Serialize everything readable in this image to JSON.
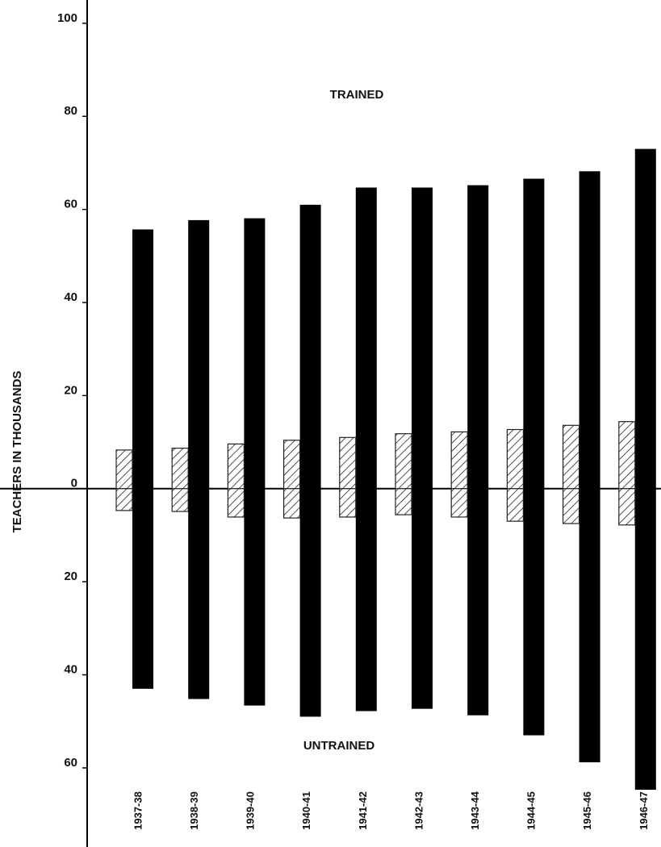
{
  "chart_data": {
    "type": "diverging-bar",
    "y_label": "TEACHERS IN THOUSANDS",
    "annotations": [
      "TRAINED",
      "UNTRAINED"
    ],
    "categories": [
      "1937-38",
      "1938-39",
      "1939-40",
      "1940-41",
      "1941-42",
      "1942-43",
      "1943-44",
      "1944-45",
      "1945-46",
      "1946-47"
    ],
    "series": [
      {
        "color": "#000000",
        "hatch": false,
        "values": [
          55.7,
          57.7,
          58.1,
          61,
          64.7,
          64.7,
          65.2,
          66.6,
          68.2,
          73
        ]
      },
      {
        "color": "#000000",
        "hatch": false,
        "values": [
          -43,
          -45.2,
          -46.6,
          -49,
          -47.8,
          -47.3,
          -48.7,
          -53,
          -58.8,
          -64.7
        ]
      },
      {
        "color": "#222222",
        "hatch": true,
        "values": [
          8.3,
          8.7,
          9.6,
          10.4,
          11,
          11.8,
          12.2,
          12.7,
          13.6,
          14.4
        ]
      },
      {
        "color": "#222222",
        "hatch": true,
        "values": [
          -4.7,
          -4.9,
          -6.1,
          -6.3,
          -6.1,
          -5.6,
          -6.1,
          -7,
          -7.5,
          -7.8
        ]
      }
    ],
    "ylim": [
      -77,
      105
    ],
    "yticks": [
      100,
      80,
      60,
      40,
      20,
      0,
      {
        "value": -20,
        "label": "20"
      },
      {
        "value": -40,
        "label": "40"
      },
      {
        "value": -60,
        "label": "60"
      }
    ]
  }
}
